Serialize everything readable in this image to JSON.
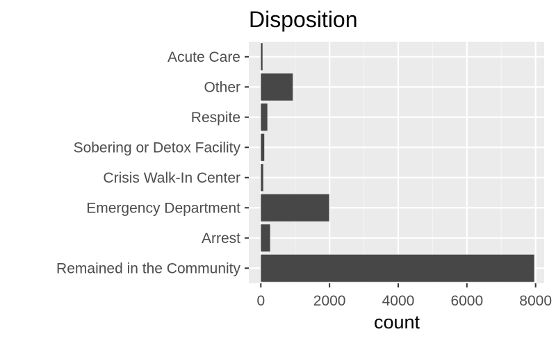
{
  "chart_data": {
    "type": "bar",
    "orientation": "horizontal",
    "title": "Disposition",
    "xlabel": "count",
    "ylabel": "",
    "categories": [
      "Remained in the Community",
      "Arrest",
      "Emergency Department",
      "Crisis Walk-In Center",
      "Sobering or Detox Facility",
      "Respite",
      "Other",
      "Acute Care"
    ],
    "values": [
      7960,
      270,
      1990,
      70,
      100,
      190,
      930,
      50
    ],
    "xlim": [
      -350,
      8250
    ],
    "xticks": [
      0,
      2000,
      4000,
      6000,
      8000
    ],
    "xtick_labels": [
      "0",
      "2000",
      "4000",
      "6000",
      "8000"
    ],
    "grid": true,
    "colors": {
      "bar": "#474747",
      "panel": "#ebebeb",
      "grid_major": "#ffffff",
      "grid_minor": "#f4f4f4",
      "tick_text": "#4d4d4d",
      "tick_mark": "#333333"
    }
  }
}
